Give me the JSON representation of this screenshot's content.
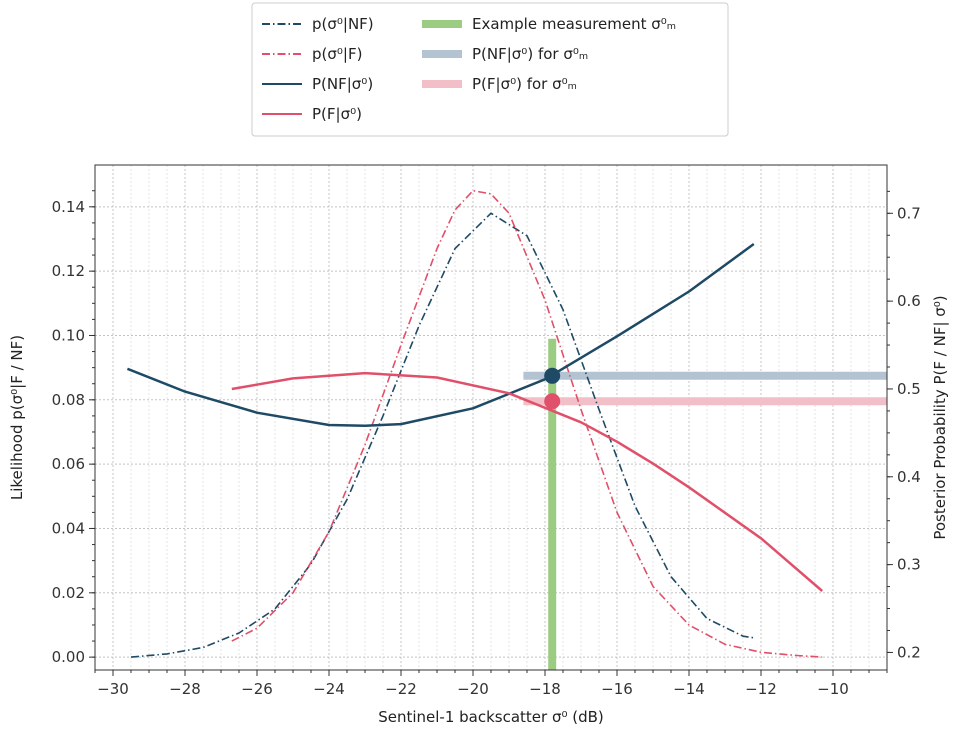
{
  "chart_data": {
    "type": "line",
    "xlabel": "Sentinel-1 backscatter σ⁰ (dB)",
    "ylabel_left": "Likelihood p(σ⁰|F / NF)",
    "ylabel_right": "Posterior Probability P(F / NF| σ⁰)",
    "xlim": [
      -30.5,
      -8.5
    ],
    "ylim_left": [
      -0.004,
      0.153
    ],
    "ylim_right": [
      0.18,
      0.755
    ],
    "xticks": [
      -30,
      -28,
      -26,
      -24,
      -22,
      -20,
      -18,
      -16,
      -14,
      -12,
      -10
    ],
    "xticklabels": [
      "−30",
      "−28",
      "−26",
      "−24",
      "−22",
      "−20",
      "−18",
      "−16",
      "−14",
      "−12",
      "−10"
    ],
    "yticks_left": [
      0.0,
      0.02,
      0.04,
      0.06,
      0.08,
      0.1,
      0.12,
      0.14
    ],
    "yticklabels_left": [
      "0.00",
      "0.02",
      "0.04",
      "0.06",
      "0.08",
      "0.10",
      "0.12",
      "0.14"
    ],
    "yticks_right": [
      0.2,
      0.3,
      0.4,
      0.5,
      0.6,
      0.7
    ],
    "yticklabels_right": [
      "0.2",
      "0.3",
      "0.4",
      "0.5",
      "0.6",
      "0.7"
    ],
    "grid": true,
    "legend_position": "top-center",
    "colors": {
      "nf": "#1e4a66",
      "f": "#e0506a",
      "green": "#9ccc82",
      "nf_light": "#b3c3d1",
      "f_light": "#f2bfc8"
    },
    "series": [
      {
        "name": "p(σ⁰|NF)",
        "axis": "left",
        "style": "dashdot",
        "color": "#1e4a66",
        "x": [
          -29.5,
          -28.5,
          -27.5,
          -26.5,
          -25.5,
          -24.5,
          -23.5,
          -22.5,
          -21.5,
          -20.5,
          -19.5,
          -18.5,
          -17.5,
          -16.5,
          -15.5,
          -14.5,
          -13.5,
          -12.5,
          -12.2
        ],
        "y": [
          0.0,
          0.001,
          0.003,
          0.0075,
          0.015,
          0.029,
          0.049,
          0.075,
          0.103,
          0.127,
          0.138,
          0.131,
          0.108,
          0.077,
          0.047,
          0.025,
          0.012,
          0.0065,
          0.006
        ]
      },
      {
        "name": "p(σ⁰|F)",
        "axis": "left",
        "style": "dashdot",
        "color": "#e0506a",
        "x": [
          -26.7,
          -26,
          -25,
          -24,
          -23,
          -22,
          -21,
          -20.5,
          -20,
          -19.5,
          -19,
          -18,
          -17,
          -16,
          -15,
          -14,
          -13,
          -12,
          -11,
          -10.3
        ],
        "y": [
          0.005,
          0.009,
          0.02,
          0.039,
          0.066,
          0.097,
          0.127,
          0.139,
          0.145,
          0.144,
          0.138,
          0.111,
          0.077,
          0.045,
          0.022,
          0.01,
          0.004,
          0.0015,
          0.0005,
          0.0
        ]
      },
      {
        "name": "P(NF|σ⁰)",
        "axis": "right",
        "style": "solid",
        "color": "#1e4a66",
        "x": [
          -29.6,
          -28,
          -26,
          -24,
          -23,
          -22,
          -20,
          -18,
          -16,
          -14,
          -12.2
        ],
        "y": [
          0.523,
          0.497,
          0.473,
          0.459,
          0.458,
          0.46,
          0.478,
          0.511,
          0.56,
          0.611,
          0.665
        ]
      },
      {
        "name": "P(F|σ⁰)",
        "axis": "right",
        "style": "solid",
        "color": "#e0506a",
        "x": [
          -26.7,
          -25,
          -23,
          -21,
          -19,
          -17,
          -16,
          -15,
          -14,
          -12,
          -10.3
        ],
        "y": [
          0.5,
          0.512,
          0.518,
          0.513,
          0.495,
          0.462,
          0.44,
          0.415,
          0.388,
          0.33,
          0.27
        ]
      }
    ],
    "measurement": {
      "name": "Example measurement σ⁰ₘ",
      "x": -17.8,
      "y_top": 0.099,
      "y_bottom": -0.004,
      "color": "#9ccc82"
    },
    "horizontals": [
      {
        "name": "P(NF|σ⁰) for σ⁰ₘ",
        "y": 0.515,
        "x_start": -18.6,
        "color": "#b3c3d1"
      },
      {
        "name": "P(F|σ⁰) for σ⁰ₘ",
        "y": 0.486,
        "x_start": -18.6,
        "color": "#f2bfc8"
      }
    ],
    "markers": [
      {
        "series": "P(NF|σ⁰)",
        "x": -17.8,
        "y": 0.515,
        "color": "#1e4a66"
      },
      {
        "series": "P(F|σ⁰)",
        "x": -17.8,
        "y": 0.486,
        "color": "#e0506a"
      }
    ],
    "legend": [
      {
        "label": "p(σ⁰|NF)",
        "kind": "dashdot",
        "color": "#1e4a66"
      },
      {
        "label": "p(σ⁰|F)",
        "kind": "dashdot",
        "color": "#e0506a"
      },
      {
        "label": "P(NF|σ⁰)",
        "kind": "solid",
        "color": "#1e4a66"
      },
      {
        "label": "P(F|σ⁰)",
        "kind": "solid",
        "color": "#e0506a"
      },
      {
        "label": "Example measurement σ⁰ₘ",
        "kind": "thick",
        "color": "#9ccc82"
      },
      {
        "label": "P(NF|σ⁰) for σ⁰ₘ",
        "kind": "thick",
        "color": "#b3c3d1"
      },
      {
        "label": "P(F|σ⁰) for σ⁰ₘ",
        "kind": "thick",
        "color": "#f2bfc8"
      }
    ]
  }
}
